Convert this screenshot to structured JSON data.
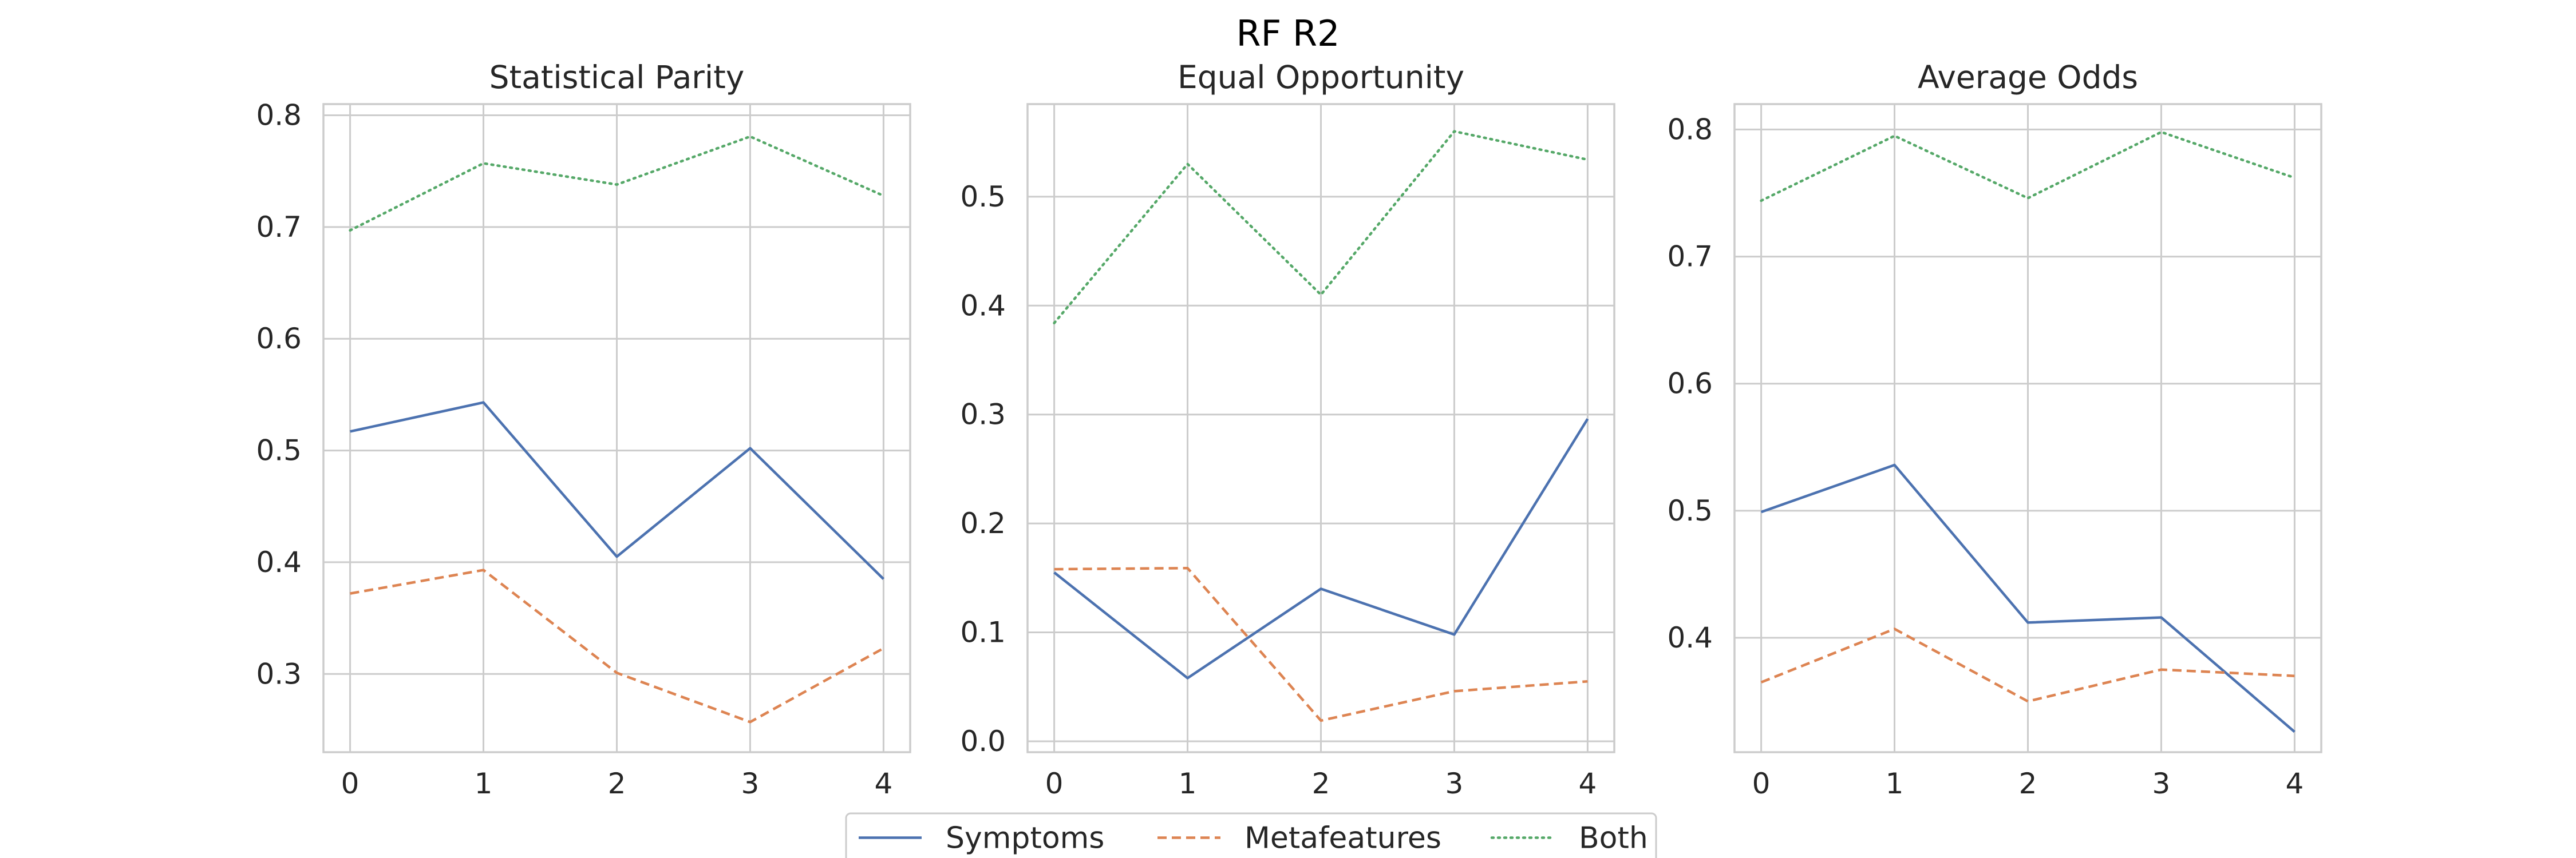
{
  "figure": {
    "title": "RF R2"
  },
  "legend": {
    "placement": "bottom-center",
    "entries": [
      {
        "name": "Symptoms",
        "color": "#4c72b0",
        "style": "solid"
      },
      {
        "name": "Metafeatures",
        "color": "#dd8452",
        "style": "dashed"
      },
      {
        "name": "Both",
        "color": "#55a868",
        "style": "dotted"
      }
    ]
  },
  "chart_data": [
    {
      "type": "line",
      "title": "Statistical Parity",
      "xlabel": "",
      "ylabel": "",
      "x": [
        0,
        1,
        2,
        3,
        4
      ],
      "xlim": [
        -0.2,
        4.2
      ],
      "ylim": [
        0.23,
        0.81
      ],
      "yticks": [
        0.3,
        0.4,
        0.5,
        0.6,
        0.7,
        0.8
      ],
      "grid": true,
      "series": [
        {
          "name": "Symptoms",
          "values": [
            0.517,
            0.543,
            0.405,
            0.502,
            0.385
          ]
        },
        {
          "name": "Metafeatures",
          "values": [
            0.372,
            0.393,
            0.301,
            0.257,
            0.323
          ]
        },
        {
          "name": "Both",
          "values": [
            0.697,
            0.757,
            0.738,
            0.781,
            0.728
          ]
        }
      ]
    },
    {
      "type": "line",
      "title": "Equal Opportunity",
      "xlabel": "",
      "ylabel": "",
      "x": [
        0,
        1,
        2,
        3,
        4
      ],
      "xlim": [
        -0.2,
        4.2
      ],
      "ylim": [
        -0.01,
        0.585
      ],
      "yticks": [
        0.0,
        0.1,
        0.2,
        0.3,
        0.4,
        0.5
      ],
      "grid": true,
      "series": [
        {
          "name": "Symptoms",
          "values": [
            0.155,
            0.058,
            0.14,
            0.098,
            0.296
          ]
        },
        {
          "name": "Metafeatures",
          "values": [
            0.158,
            0.159,
            0.019,
            0.046,
            0.055
          ]
        },
        {
          "name": "Both",
          "values": [
            0.384,
            0.53,
            0.41,
            0.56,
            0.534
          ]
        }
      ]
    },
    {
      "type": "line",
      "title": "Average Odds",
      "xlabel": "",
      "ylabel": "",
      "x": [
        0,
        1,
        2,
        3,
        4
      ],
      "xlim": [
        -0.2,
        4.2
      ],
      "ylim": [
        0.31,
        0.82
      ],
      "yticks": [
        0.4,
        0.5,
        0.6,
        0.7,
        0.8
      ],
      "grid": true,
      "series": [
        {
          "name": "Symptoms",
          "values": [
            0.499,
            0.536,
            0.412,
            0.416,
            0.326
          ]
        },
        {
          "name": "Metafeatures",
          "values": [
            0.365,
            0.407,
            0.35,
            0.375,
            0.37
          ]
        },
        {
          "name": "Both",
          "values": [
            0.744,
            0.795,
            0.746,
            0.798,
            0.762
          ]
        }
      ]
    }
  ]
}
